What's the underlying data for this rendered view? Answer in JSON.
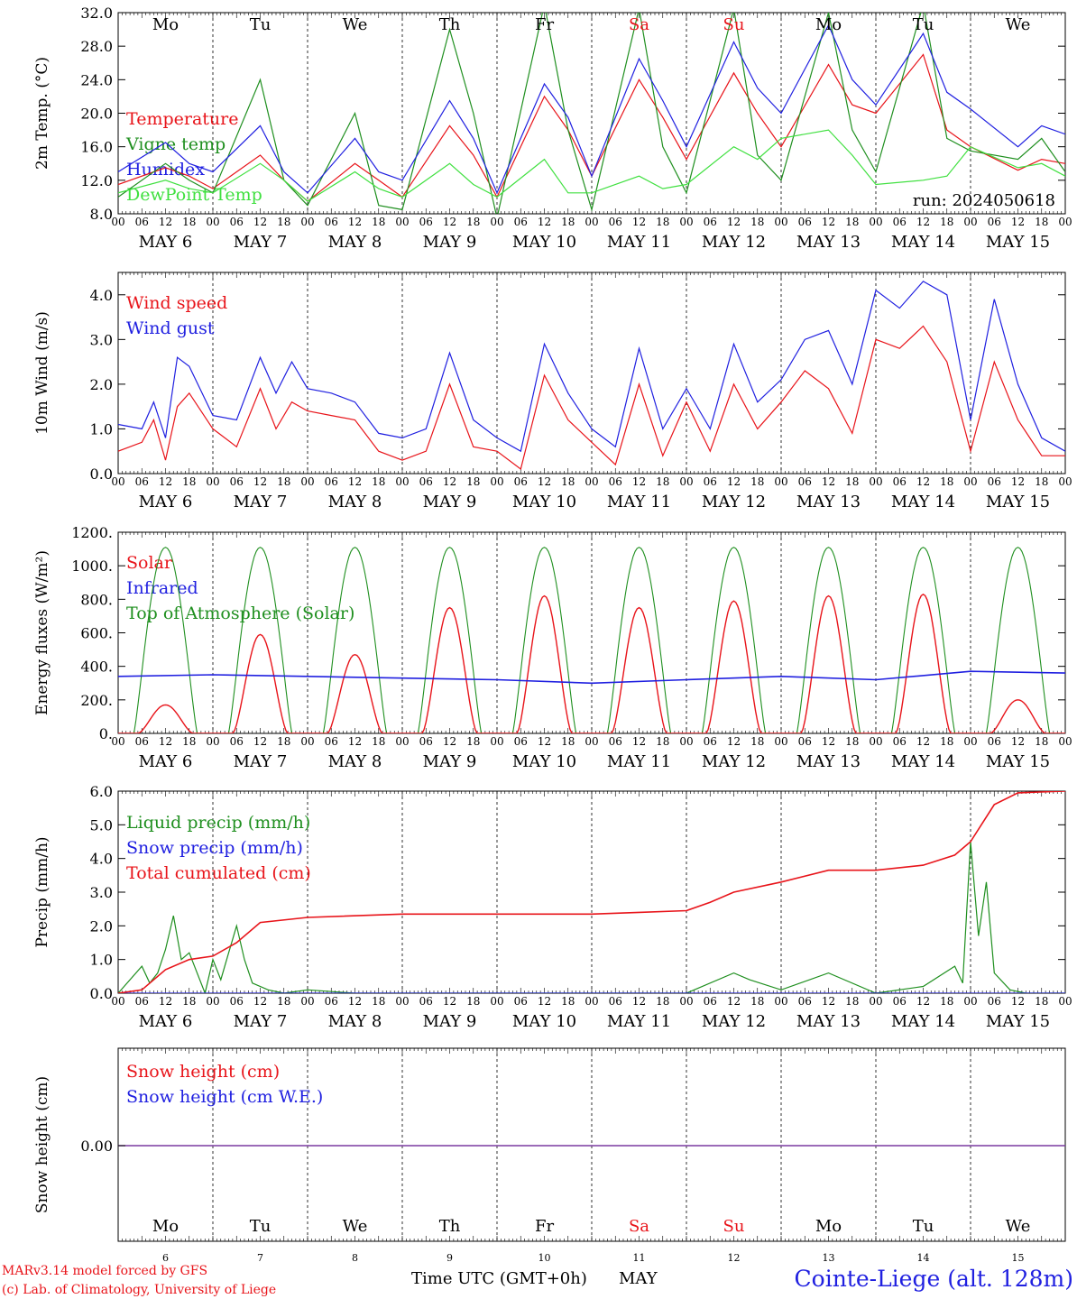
{
  "chart_data": {
    "type": "line",
    "days": [
      {
        "abbr": "Mo",
        "date": "6",
        "weekend": false
      },
      {
        "abbr": "Tu",
        "date": "7",
        "weekend": false
      },
      {
        "abbr": "We",
        "date": "8",
        "weekend": false
      },
      {
        "abbr": "Th",
        "date": "9",
        "weekend": false
      },
      {
        "abbr": "Fr",
        "date": "10",
        "weekend": false
      },
      {
        "abbr": "Sa",
        "date": "11",
        "weekend": true
      },
      {
        "abbr": "Su",
        "date": "12",
        "weekend": true
      },
      {
        "abbr": "Mo",
        "date": "13",
        "weekend": false
      },
      {
        "abbr": "Tu",
        "date": "14",
        "weekend": false
      },
      {
        "abbr": "We",
        "date": "15",
        "weekend": false
      }
    ],
    "month": "MAY",
    "hour_ticks": [
      "00",
      "06",
      "12",
      "18"
    ],
    "colors": {
      "red": "#e8141a",
      "green": "#1f8f1f",
      "blue": "#2020e0",
      "lightgreen": "#40e040",
      "weekend": "#e8141a"
    },
    "panels": [
      {
        "id": "temperature",
        "ylabel": "2m Temp. (°C)",
        "ylim": [
          8,
          32
        ],
        "yticks": [
          "8.0",
          "12.0",
          "16.0",
          "20.0",
          "24.0",
          "28.0",
          "32.0"
        ],
        "annotation": "run: 2024050618",
        "series": [
          {
            "name": "Temperature",
            "color": "#e8141a",
            "x": [
              0,
              12,
              18,
              24,
              36,
              42,
              48,
              60,
              66,
              72,
              84,
              90,
              96,
              108,
              114,
              120,
              132,
              138,
              144,
              156,
              162,
              168,
              180,
              186,
              192,
              204,
              210,
              216,
              228,
              234,
              240
            ],
            "y": [
              11.5,
              13.5,
              12.5,
              11.0,
              15.0,
              12.0,
              9.5,
              14.0,
              12.0,
              10.0,
              18.5,
              15.0,
              10.0,
              22.0,
              18.0,
              12.5,
              24.0,
              19.5,
              14.5,
              24.8,
              20.0,
              16.0,
              25.8,
              21.0,
              20.0,
              27.0,
              18.0,
              16.0,
              13.2,
              14.5,
              14.0
            ]
          },
          {
            "name": "Vigne temp",
            "color": "#1f8f1f",
            "x": [
              0,
              12,
              18,
              24,
              36,
              42,
              48,
              60,
              66,
              72,
              84,
              90,
              96,
              108,
              114,
              120,
              132,
              138,
              144,
              156,
              162,
              168,
              180,
              186,
              192,
              204,
              210,
              216,
              228,
              234,
              240
            ],
            "y": [
              10.0,
              14.0,
              12.0,
              10.5,
              24.0,
              12.0,
              9.0,
              20.0,
              9.0,
              8.5,
              30.0,
              20.0,
              7.5,
              33.0,
              18.0,
              8.5,
              32.5,
              16.0,
              10.5,
              32.5,
              15.0,
              12.0,
              32.0,
              18.0,
              13.0,
              33.0,
              17.0,
              15.5,
              14.5,
              17.0,
              13.0
            ]
          },
          {
            "name": "Humidex",
            "color": "#2020e0",
            "x": [
              0,
              12,
              18,
              24,
              36,
              42,
              48,
              60,
              66,
              72,
              84,
              90,
              96,
              108,
              114,
              120,
              132,
              138,
              144,
              156,
              162,
              168,
              180,
              186,
              192,
              204,
              210,
              216,
              228,
              234,
              240
            ],
            "y": [
              13.0,
              16.5,
              14.0,
              13.0,
              18.5,
              13.0,
              10.5,
              17.0,
              13.0,
              12.0,
              21.5,
              17.0,
              10.5,
              23.5,
              19.5,
              12.5,
              26.5,
              21.5,
              16.0,
              28.5,
              23.0,
              20.0,
              30.5,
              24.0,
              21.0,
              29.5,
              22.5,
              20.5,
              16.0,
              18.5,
              17.5
            ]
          },
          {
            "name": "DewPoint Temp",
            "color": "#40e040",
            "x": [
              0,
              12,
              18,
              24,
              36,
              42,
              48,
              60,
              66,
              72,
              84,
              90,
              96,
              108,
              114,
              120,
              132,
              138,
              144,
              156,
              162,
              168,
              180,
              186,
              192,
              204,
              210,
              216,
              228,
              234,
              240
            ],
            "y": [
              10.5,
              12.0,
              11.0,
              10.5,
              14.0,
              12.0,
              9.5,
              13.0,
              11.0,
              10.0,
              14.0,
              11.5,
              10.0,
              14.5,
              10.5,
              10.5,
              12.5,
              11.0,
              11.5,
              16.0,
              14.5,
              17.0,
              18.0,
              15.0,
              11.5,
              12.0,
              12.5,
              16.0,
              13.5,
              14.0,
              12.5
            ]
          }
        ]
      },
      {
        "id": "wind",
        "ylabel": "10m Wind (m/s)",
        "ylim": [
          0,
          4.5
        ],
        "yticks": [
          "0.0",
          "1.0",
          "2.0",
          "3.0",
          "4.0"
        ],
        "series": [
          {
            "name": "Wind speed",
            "color": "#e8141a",
            "x": [
              0,
              6,
              9,
              12,
              15,
              18,
              24,
              30,
              36,
              40,
              44,
              48,
              54,
              60,
              66,
              72,
              78,
              84,
              90,
              96,
              102,
              108,
              114,
              120,
              126,
              132,
              138,
              144,
              150,
              156,
              162,
              168,
              174,
              180,
              186,
              192,
              198,
              204,
              210,
              216,
              222,
              228,
              234,
              240
            ],
            "y": [
              0.5,
              0.7,
              1.2,
              0.3,
              1.5,
              1.8,
              1.0,
              0.6,
              1.9,
              1.0,
              1.6,
              1.4,
              1.3,
              1.2,
              0.5,
              0.3,
              0.5,
              2.0,
              0.6,
              0.5,
              0.1,
              2.2,
              1.2,
              0.7,
              0.2,
              2.0,
              0.4,
              1.6,
              0.5,
              2.0,
              1.0,
              1.6,
              2.3,
              1.9,
              0.9,
              3.0,
              2.8,
              3.3,
              2.5,
              0.5,
              2.5,
              1.2,
              0.4,
              0.4
            ]
          },
          {
            "name": "Wind gust",
            "color": "#2020e0",
            "x": [
              0,
              6,
              9,
              12,
              15,
              18,
              24,
              30,
              36,
              40,
              44,
              48,
              54,
              60,
              66,
              72,
              78,
              84,
              90,
              96,
              102,
              108,
              114,
              120,
              126,
              132,
              138,
              144,
              150,
              156,
              162,
              168,
              174,
              180,
              186,
              192,
              198,
              204,
              210,
              216,
              222,
              228,
              234,
              240
            ],
            "y": [
              1.1,
              1.0,
              1.6,
              0.8,
              2.6,
              2.4,
              1.3,
              1.2,
              2.6,
              1.8,
              2.5,
              1.9,
              1.8,
              1.6,
              0.9,
              0.8,
              1.0,
              2.7,
              1.2,
              0.8,
              0.5,
              2.9,
              1.8,
              1.0,
              0.6,
              2.8,
              1.0,
              1.9,
              1.0,
              2.9,
              1.6,
              2.1,
              3.0,
              3.2,
              2.0,
              4.1,
              3.7,
              4.3,
              4.0,
              1.2,
              3.9,
              2.0,
              0.8,
              0.5
            ]
          }
        ]
      },
      {
        "id": "energy",
        "ylabel": "Energy fluxes (W/m²)",
        "ylim": [
          0,
          1200
        ],
        "yticks": [
          "0.",
          "200.",
          "400.",
          "600.",
          "800.",
          "1000.",
          "1200."
        ],
        "series": [
          {
            "name": "Solar",
            "color": "#e8141a",
            "peaks": [
              170,
              590,
              470,
              750,
              820,
              750,
              790,
              820,
              830,
              200
            ]
          },
          {
            "name": "Infrared",
            "color": "#2020e0",
            "x": [
              0,
              24,
              48,
              72,
              96,
              120,
              144,
              168,
              192,
              216,
              240
            ],
            "y": [
              340,
              350,
              340,
              330,
              320,
              300,
              320,
              340,
              320,
              370,
              360
            ]
          },
          {
            "name": "Top of Atmosphere (Solar)",
            "color": "#1f8f1f",
            "peak": 1110
          }
        ]
      },
      {
        "id": "precip",
        "ylabel": "Precip (mm/h)",
        "ylim": [
          0,
          6
        ],
        "yticks": [
          "0.0",
          "1.0",
          "2.0",
          "3.0",
          "4.0",
          "5.0",
          "6.0"
        ],
        "series": [
          {
            "name": "Liquid precip (mm/h)",
            "color": "#1f8f1f",
            "x": [
              0,
              6,
              8,
              10,
              12,
              14,
              16,
              18,
              22,
              24,
              26,
              28,
              30,
              32,
              34,
              38,
              42,
              48,
              60,
              72,
              96,
              132,
              144,
              156,
              160,
              168,
              180,
              192,
              204,
              212,
              214,
              216,
              218,
              220,
              222,
              226,
              230,
              240
            ],
            "y": [
              0,
              0.8,
              0.3,
              0.6,
              1.3,
              2.3,
              1.0,
              1.2,
              0.0,
              1.0,
              0.4,
              1.2,
              2.0,
              1.0,
              0.3,
              0.1,
              0.0,
              0.1,
              0.0,
              0.0,
              0.0,
              0.0,
              0.0,
              0.6,
              0.4,
              0.1,
              0.6,
              0.0,
              0.2,
              0.8,
              0.3,
              4.5,
              1.7,
              3.3,
              0.6,
              0.1,
              0.0,
              0.0
            ]
          },
          {
            "name": "Snow precip (mm/h)",
            "color": "#2020e0",
            "x": [
              0,
              240
            ],
            "y": [
              0,
              0
            ]
          },
          {
            "name": "Total cumulated (cm)",
            "color": "#e8141a",
            "x": [
              0,
              6,
              12,
              18,
              24,
              30,
              36,
              48,
              72,
              96,
              120,
              132,
              144,
              150,
              156,
              168,
              180,
              192,
              204,
              212,
              216,
              222,
              228,
              240
            ],
            "y": [
              0,
              0.1,
              0.7,
              1.0,
              1.1,
              1.5,
              2.1,
              2.25,
              2.35,
              2.35,
              2.35,
              2.4,
              2.45,
              2.7,
              3.0,
              3.3,
              3.65,
              3.65,
              3.8,
              4.1,
              4.5,
              5.6,
              5.95,
              6.0
            ]
          }
        ]
      },
      {
        "id": "snow",
        "ylabel": "Snow height (cm)",
        "yticks": [
          "0.00"
        ],
        "series": [
          {
            "name": "Snow height (cm)",
            "color": "#e8141a",
            "value": 0
          },
          {
            "name": "Snow height (cm W.E.)",
            "color": "#2020e0",
            "value": 0
          }
        ]
      }
    ],
    "footer": {
      "xlabel": "Time UTC (GMT+0h)",
      "month": "MAY",
      "credit_line1": "MARv3.14 model forced by GFS",
      "credit_line2": "(c) Lab. of Climatology, University of Liege",
      "station": "Cointe-Liege (alt. 128m)"
    }
  }
}
